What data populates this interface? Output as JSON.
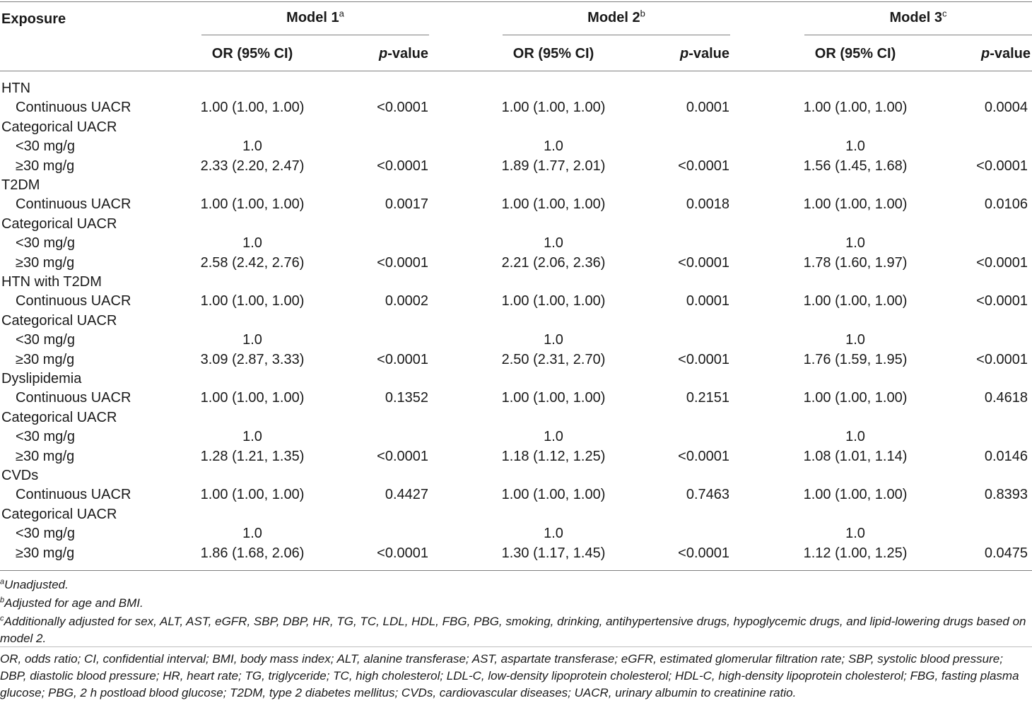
{
  "header": {
    "exposure": "Exposure",
    "groups": [
      {
        "title": "Model 1",
        "sup": "a"
      },
      {
        "title": "Model 2",
        "sup": "b"
      },
      {
        "title": "Model 3",
        "sup": "c"
      }
    ],
    "or_label": "OR (95% CI)",
    "p_italic": "p",
    "p_rest": "-value"
  },
  "rows": [
    {
      "label": "HTN",
      "indent": false,
      "cells": [
        "",
        "",
        "",
        "",
        "",
        ""
      ]
    },
    {
      "label": "Continuous UACR",
      "indent": true,
      "cells": [
        "1.00 (1.00, 1.00)",
        "<0.0001",
        "1.00 (1.00, 1.00)",
        "0.0001",
        "1.00 (1.00, 1.00)",
        "0.0004"
      ]
    },
    {
      "label": "Categorical UACR",
      "indent": false,
      "cells": [
        "",
        "",
        "",
        "",
        "",
        ""
      ]
    },
    {
      "label": "<30 mg/g",
      "indent": true,
      "cells": [
        "1.0",
        "",
        "1.0",
        "",
        "1.0",
        ""
      ]
    },
    {
      "label": "≥30 mg/g",
      "indent": true,
      "cells": [
        "2.33 (2.20, 2.47)",
        "<0.0001",
        "1.89 (1.77, 2.01)",
        "<0.0001",
        "1.56 (1.45, 1.68)",
        "<0.0001"
      ]
    },
    {
      "label": "T2DM",
      "indent": false,
      "cells": [
        "",
        "",
        "",
        "",
        "",
        ""
      ]
    },
    {
      "label": "Continuous UACR",
      "indent": true,
      "cells": [
        "1.00 (1.00, 1.00)",
        "0.0017",
        "1.00 (1.00, 1.00)",
        "0.0018",
        "1.00 (1.00, 1.00)",
        "0.0106"
      ]
    },
    {
      "label": "Categorical UACR",
      "indent": false,
      "cells": [
        "",
        "",
        "",
        "",
        "",
        ""
      ]
    },
    {
      "label": "<30 mg/g",
      "indent": true,
      "cells": [
        "1.0",
        "",
        "1.0",
        "",
        "1.0",
        ""
      ]
    },
    {
      "label": "≥30 mg/g",
      "indent": true,
      "cells": [
        "2.58 (2.42, 2.76)",
        "<0.0001",
        "2.21 (2.06, 2.36)",
        "<0.0001",
        "1.78 (1.60, 1.97)",
        "<0.0001"
      ]
    },
    {
      "label": "HTN with T2DM",
      "indent": false,
      "cells": [
        "",
        "",
        "",
        "",
        "",
        ""
      ]
    },
    {
      "label": "Continuous UACR",
      "indent": true,
      "cells": [
        "1.00 (1.00, 1.00)",
        "0.0002",
        "1.00 (1.00, 1.00)",
        "0.0001",
        "1.00 (1.00, 1.00)",
        "<0.0001"
      ]
    },
    {
      "label": "Categorical UACR",
      "indent": false,
      "cells": [
        "",
        "",
        "",
        "",
        "",
        ""
      ]
    },
    {
      "label": "<30 mg/g",
      "indent": true,
      "cells": [
        "1.0",
        "",
        "1.0",
        "",
        "1.0",
        ""
      ]
    },
    {
      "label": "≥30 mg/g",
      "indent": true,
      "cells": [
        "3.09 (2.87, 3.33)",
        "<0.0001",
        "2.50 (2.31, 2.70)",
        "<0.0001",
        "1.76 (1.59, 1.95)",
        "<0.0001"
      ]
    },
    {
      "label": "Dyslipidemia",
      "indent": false,
      "cells": [
        "",
        "",
        "",
        "",
        "",
        ""
      ]
    },
    {
      "label": "Continuous UACR",
      "indent": true,
      "cells": [
        "1.00 (1.00, 1.00)",
        "0.1352",
        "1.00 (1.00, 1.00)",
        "0.2151",
        "1.00 (1.00, 1.00)",
        "0.4618"
      ]
    },
    {
      "label": "Categorical UACR",
      "indent": false,
      "cells": [
        "",
        "",
        "",
        "",
        "",
        ""
      ]
    },
    {
      "label": "<30 mg/g",
      "indent": true,
      "cells": [
        "1.0",
        "",
        "1.0",
        "",
        "1.0",
        ""
      ]
    },
    {
      "label": "≥30 mg/g",
      "indent": true,
      "cells": [
        "1.28 (1.21, 1.35)",
        "<0.0001",
        "1.18 (1.12, 1.25)",
        "<0.0001",
        "1.08 (1.01, 1.14)",
        "0.0146"
      ]
    },
    {
      "label": "CVDs",
      "indent": false,
      "cells": [
        "",
        "",
        "",
        "",
        "",
        ""
      ]
    },
    {
      "label": "Continuous UACR",
      "indent": true,
      "cells": [
        "1.00 (1.00, 1.00)",
        "0.4427",
        "1.00 (1.00, 1.00)",
        "0.7463",
        "1.00 (1.00, 1.00)",
        "0.8393"
      ]
    },
    {
      "label": "Categorical UACR",
      "indent": false,
      "cells": [
        "",
        "",
        "",
        "",
        "",
        ""
      ]
    },
    {
      "label": "<30 mg/g",
      "indent": true,
      "cells": [
        "1.0",
        "",
        "1.0",
        "",
        "1.0",
        ""
      ]
    },
    {
      "label": "≥30 mg/g",
      "indent": true,
      "cells": [
        "1.86 (1.68, 2.06)",
        "<0.0001",
        "1.30 (1.17, 1.45)",
        "<0.0001",
        "1.12 (1.00, 1.25)",
        "0.0475"
      ]
    }
  ],
  "footnotes": [
    {
      "sup": "a",
      "text": "Unadjusted."
    },
    {
      "sup": "b",
      "text": "Adjusted for age and BMI."
    },
    {
      "sup": "c",
      "text": "Additionally adjusted for sex, ALT, AST, eGFR, SBP, DBP, HR, TG, TC, LDL, HDL, FBG, PBG, smoking, drinking, antihypertensive drugs, hypoglycemic drugs, and lipid-lowering drugs based on model 2."
    }
  ],
  "abbreviations": "OR, odds ratio; CI, confidential interval; BMI, body mass index; ALT, alanine transferase; AST, aspartate transferase; eGFR, estimated glomerular filtration rate; SBP, systolic blood pressure; DBP, diastolic blood pressure; HR, heart rate; TG, triglyceride; TC, high cholesterol; LDL-C, low-density lipoprotein cholesterol; HDL-C, high-density lipoprotein cholesterol; FBG, fasting plasma glucose; PBG, 2 h postload blood glucose; T2DM, type 2 diabetes mellitus; CVDs, cardiovascular diseases; UACR, urinary albumin to creatinine ratio."
}
